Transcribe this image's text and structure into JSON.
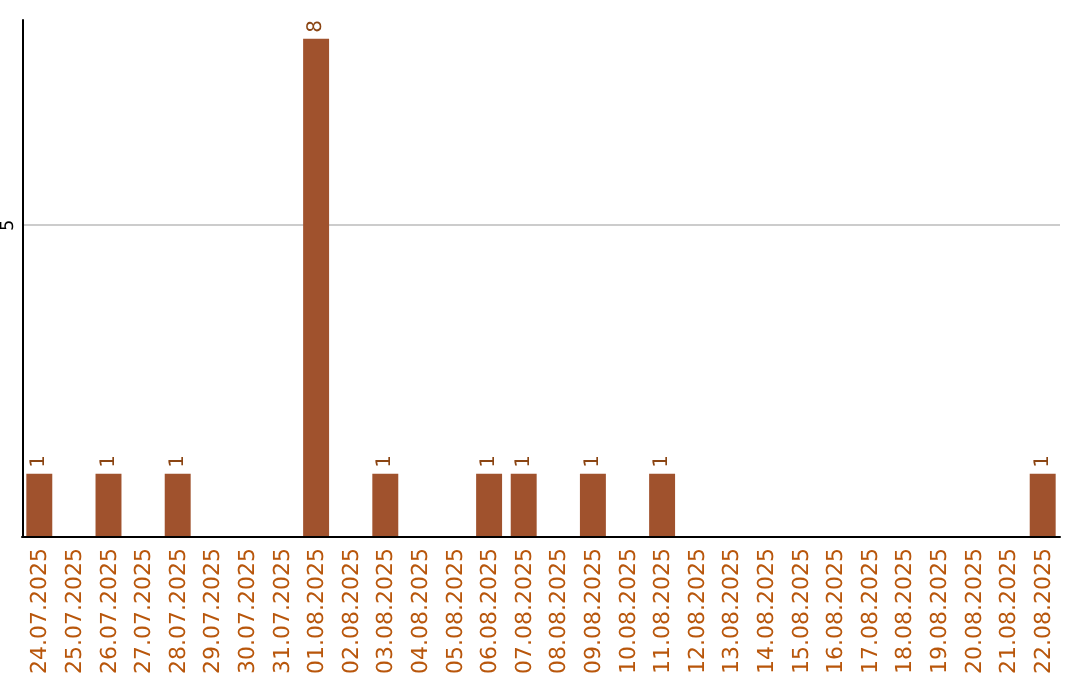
{
  "chart_data": {
    "type": "bar",
    "categories": [
      "24.07.2025",
      "25.07.2025",
      "26.07.2025",
      "27.07.2025",
      "28.07.2025",
      "29.07.2025",
      "30.07.2025",
      "31.07.2025",
      "01.08.2025",
      "02.08.2025",
      "03.08.2025",
      "04.08.2025",
      "05.08.2025",
      "06.08.2025",
      "07.08.2025",
      "08.08.2025",
      "09.08.2025",
      "10.08.2025",
      "11.08.2025",
      "12.08.2025",
      "13.08.2025",
      "14.08.2025",
      "15.08.2025",
      "16.08.2025",
      "17.08.2025",
      "18.08.2025",
      "19.08.2025",
      "20.08.2025",
      "21.08.2025",
      "22.08.2025"
    ],
    "values": [
      1,
      0,
      1,
      0,
      1,
      0,
      0,
      0,
      8,
      0,
      1,
      0,
      0,
      1,
      1,
      0,
      1,
      0,
      1,
      0,
      0,
      0,
      0,
      0,
      0,
      0,
      0,
      0,
      0,
      1
    ],
    "value_labels": [
      "1",
      null,
      "1",
      null,
      "1",
      null,
      null,
      null,
      "8",
      null,
      "1",
      null,
      null,
      "1",
      "1",
      null,
      "1",
      null,
      "1",
      null,
      null,
      null,
      null,
      null,
      null,
      null,
      null,
      null,
      null,
      "1"
    ],
    "color": "#a0522d",
    "ylim": [
      0,
      8.3
    ],
    "yticks": [
      5
    ],
    "grid": "y"
  }
}
